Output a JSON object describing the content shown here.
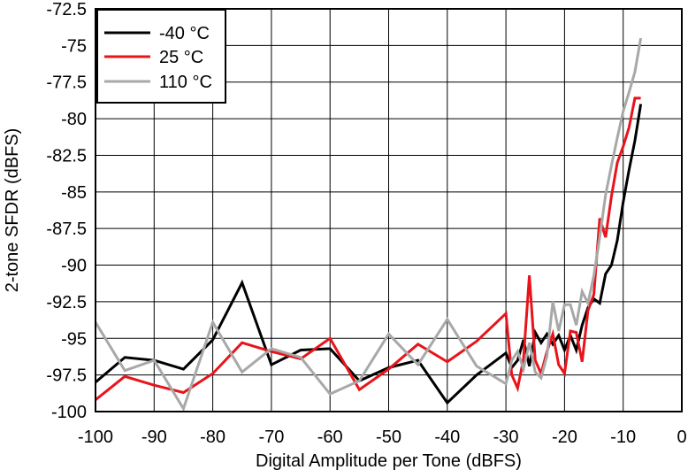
{
  "chart_data": {
    "type": "line",
    "title": "",
    "xlabel": "Digital Amplitude per Tone (dBFS)",
    "ylabel": "2-tone SFDR (dBFS)",
    "xlim": [
      -100,
      0
    ],
    "ylim": [
      -100,
      -72.5
    ],
    "xticks": [
      -100,
      -90,
      -80,
      -70,
      -60,
      -50,
      -40,
      -30,
      -20,
      -10,
      0
    ],
    "yticks": [
      -100,
      -97.5,
      -95,
      -92.5,
      -90,
      -87.5,
      -85,
      -82.5,
      -80,
      -77.5,
      -75,
      -72.5
    ],
    "xtick_labels": [
      "-100",
      "-90",
      "-80",
      "-70",
      "-60",
      "-50",
      "-40",
      "-30",
      "-20",
      "-10",
      "0"
    ],
    "ytick_labels": [
      "-100",
      "-97.5",
      "-95",
      "-92.5",
      "-90",
      "-87.5",
      "-85",
      "-82.5",
      "-80",
      "-77.5",
      "-75",
      "-72.5"
    ],
    "grid": true,
    "legend_position": "top-left",
    "series": [
      {
        "name": "-40 °C",
        "color": "#000000",
        "points": [
          [
            -100,
            -98
          ],
          [
            -95,
            -96.3
          ],
          [
            -90,
            -96.5
          ],
          [
            -85,
            -97.1
          ],
          [
            -80,
            -95.1
          ],
          [
            -75,
            -91.2
          ],
          [
            -70,
            -96.8
          ],
          [
            -65,
            -95.8
          ],
          [
            -60,
            -95.7
          ],
          [
            -55,
            -97.9
          ],
          [
            -50,
            -97
          ],
          [
            -45,
            -96.5
          ],
          [
            -40,
            -99.4
          ],
          [
            -35,
            -97.5
          ],
          [
            -30,
            -96
          ],
          [
            -29,
            -97
          ],
          [
            -28,
            -96.5
          ],
          [
            -27,
            -95.1
          ],
          [
            -26,
            -96.9
          ],
          [
            -25,
            -94.6
          ],
          [
            -24,
            -95.3
          ],
          [
            -23,
            -94.7
          ],
          [
            -22,
            -95.4
          ],
          [
            -21,
            -94.8
          ],
          [
            -20,
            -95.8
          ],
          [
            -19,
            -94.8
          ],
          [
            -18,
            -95.8
          ],
          [
            -17,
            -94.1
          ],
          [
            -16,
            -92.9
          ],
          [
            -15,
            -92.3
          ],
          [
            -14,
            -92.6
          ],
          [
            -13,
            -90.6
          ],
          [
            -12,
            -90
          ],
          [
            -11,
            -88.3
          ],
          [
            -10,
            -85.7
          ],
          [
            -9,
            -83.5
          ],
          [
            -8,
            -81.5
          ],
          [
            -7,
            -79
          ]
        ]
      },
      {
        "name": "25 °C",
        "color": "#e8141b",
        "points": [
          [
            -100,
            -99.2
          ],
          [
            -95,
            -97.6
          ],
          [
            -90,
            -98.2
          ],
          [
            -85,
            -98.7
          ],
          [
            -80,
            -97.4
          ],
          [
            -75,
            -95.3
          ],
          [
            -70,
            -95.9
          ],
          [
            -65,
            -96.4
          ],
          [
            -60,
            -95
          ],
          [
            -55,
            -98.5
          ],
          [
            -50,
            -97.1
          ],
          [
            -45,
            -95.4
          ],
          [
            -40,
            -96.6
          ],
          [
            -35,
            -95.2
          ],
          [
            -30,
            -93.3
          ],
          [
            -29,
            -97.5
          ],
          [
            -28,
            -98.4
          ],
          [
            -27,
            -96.4
          ],
          [
            -26,
            -90.7
          ],
          [
            -25,
            -96.5
          ],
          [
            -24,
            -97.4
          ],
          [
            -23,
            -95.9
          ],
          [
            -22,
            -94.7
          ],
          [
            -21,
            -96.8
          ],
          [
            -20,
            -97.4
          ],
          [
            -19,
            -94.5
          ],
          [
            -18,
            -94.6
          ],
          [
            -17,
            -96.6
          ],
          [
            -16,
            -93.1
          ],
          [
            -15,
            -92
          ],
          [
            -14,
            -86.8
          ],
          [
            -13,
            -88.1
          ],
          [
            -12,
            -85.3
          ],
          [
            -11,
            -83
          ],
          [
            -10,
            -81.9
          ],
          [
            -9,
            -80.6
          ],
          [
            -8,
            -78.6
          ],
          [
            -7,
            -78.6
          ]
        ]
      },
      {
        "name": "110 °C",
        "color": "#a8a8a8",
        "points": [
          [
            -100,
            -93.9
          ],
          [
            -95,
            -97.2
          ],
          [
            -90,
            -96.5
          ],
          [
            -85,
            -99.8
          ],
          [
            -80,
            -93.9
          ],
          [
            -75,
            -97.3
          ],
          [
            -70,
            -95.7
          ],
          [
            -65,
            -96.3
          ],
          [
            -60,
            -98.8
          ],
          [
            -55,
            -97.9
          ],
          [
            -50,
            -94.7
          ],
          [
            -45,
            -96.8
          ],
          [
            -40,
            -93.7
          ],
          [
            -35,
            -96.9
          ],
          [
            -30,
            -98.1
          ],
          [
            -29,
            -96.5
          ],
          [
            -28,
            -95.9
          ],
          [
            -27,
            -97.1
          ],
          [
            -26,
            -95.3
          ],
          [
            -25,
            -97.3
          ],
          [
            -24,
            -97.7
          ],
          [
            -23,
            -96.2
          ],
          [
            -22,
            -92.5
          ],
          [
            -21,
            -94.5
          ],
          [
            -20,
            -92.7
          ],
          [
            -19,
            -92.7
          ],
          [
            -18,
            -94.1
          ],
          [
            -17,
            -91.8
          ],
          [
            -16,
            -92.6
          ],
          [
            -15,
            -90.7
          ],
          [
            -14,
            -88.1
          ],
          [
            -13,
            -85.2
          ],
          [
            -12,
            -83.2
          ],
          [
            -11,
            -81.3
          ],
          [
            -10,
            -79.5
          ],
          [
            -9,
            -78.2
          ],
          [
            -8,
            -76.8
          ],
          [
            -7,
            -74.5
          ]
        ]
      }
    ]
  }
}
